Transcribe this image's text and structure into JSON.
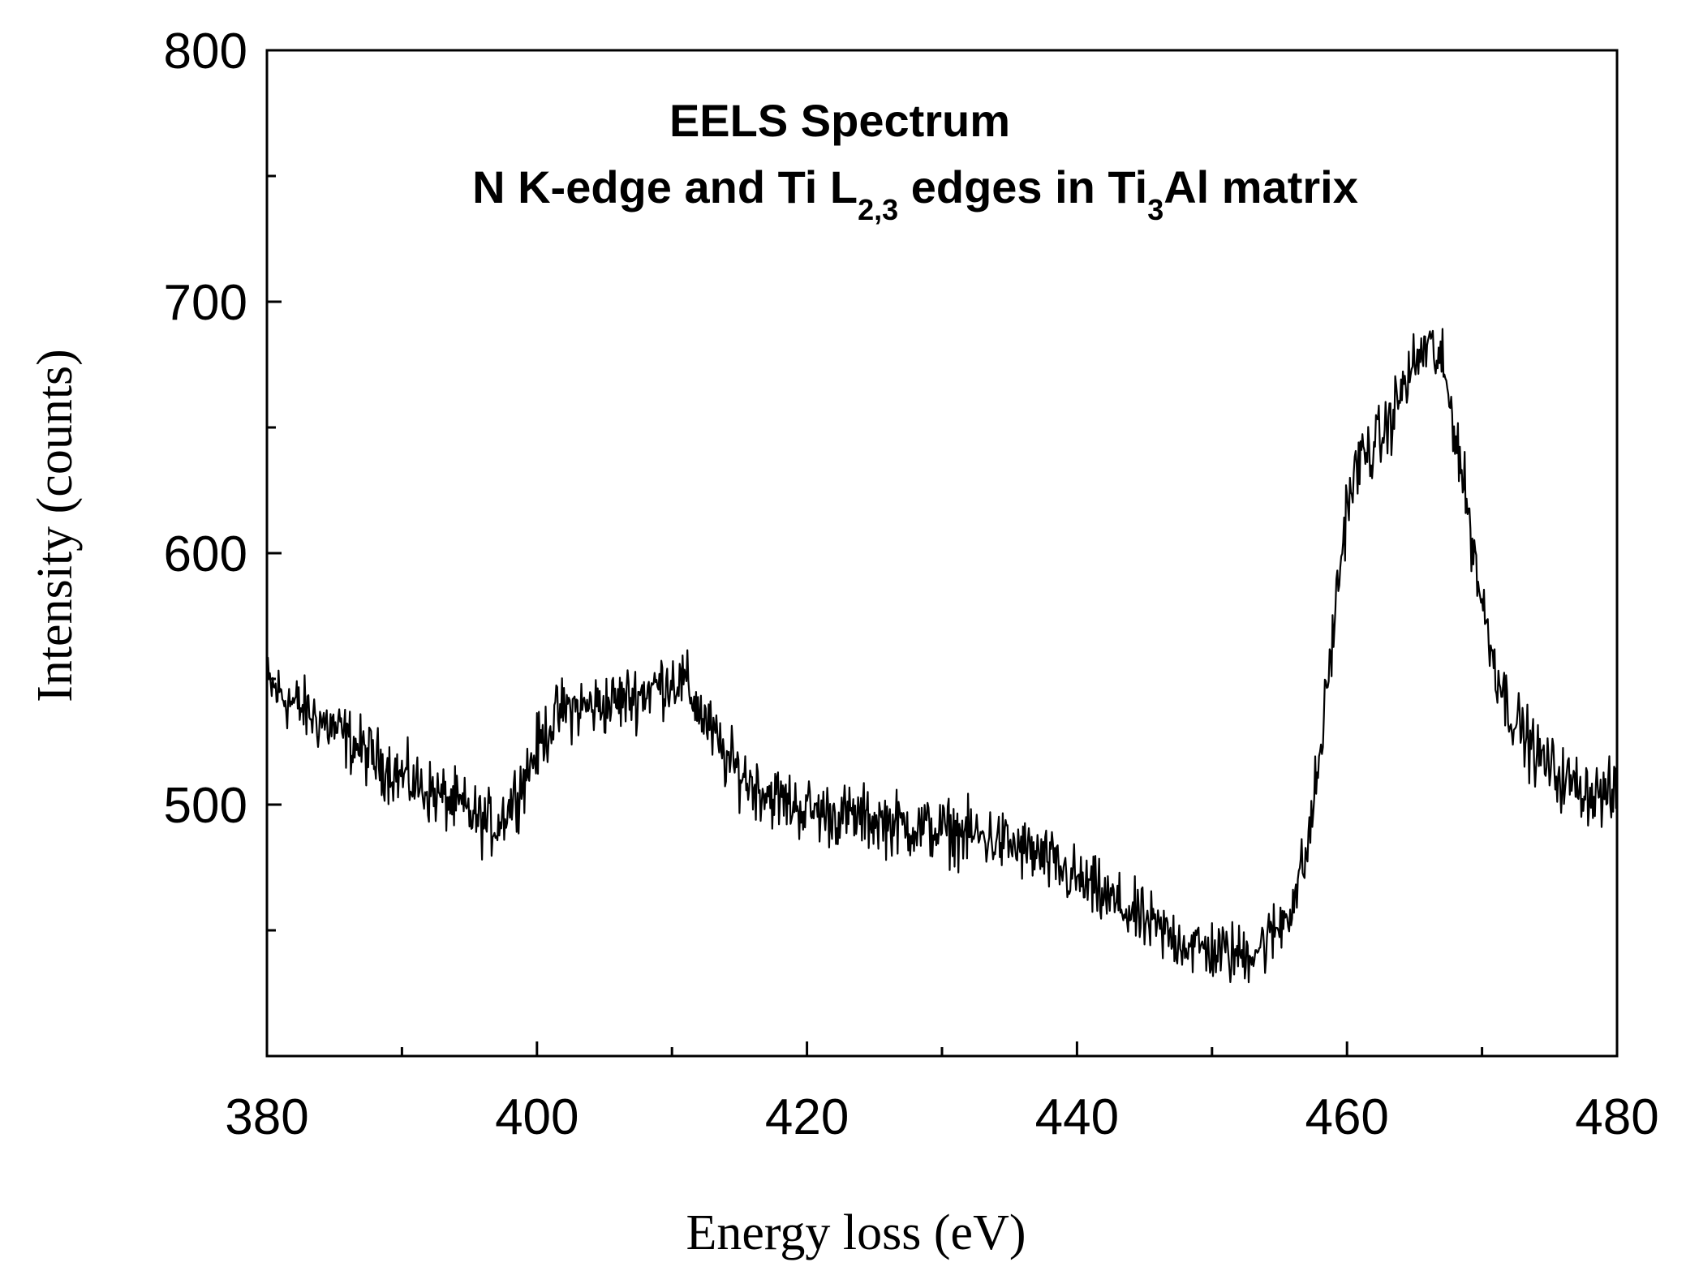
{
  "chart_data": {
    "type": "line",
    "title": "EELS Spectrum",
    "subtitle": {
      "parts": [
        {
          "text": "N K-edge and Ti L",
          "sub": false
        },
        {
          "text": "2,3",
          "sub": true
        },
        {
          "text": " edges in Ti",
          "sub": false
        },
        {
          "text": "3",
          "sub": true
        },
        {
          "text": "Al matrix",
          "sub": false
        }
      ]
    },
    "xlabel": "Energy loss (eV)",
    "ylabel": "Intensity (counts)",
    "xlim": [
      380,
      480
    ],
    "ylim": [
      400,
      800
    ],
    "x_ticks": [
      380,
      400,
      420,
      440,
      460,
      480
    ],
    "x_minor_ticks": [
      390,
      410,
      430,
      450,
      470
    ],
    "y_ticks": [
      500,
      600,
      700,
      800
    ],
    "y_minor_ticks": [
      450,
      550,
      650,
      750
    ],
    "grid": false,
    "legend": "none",
    "noise_amplitude": 9,
    "series": [
      {
        "name": "EELS spectrum",
        "x": [
          380,
          382,
          385,
          388,
          391,
          394,
          396,
          397,
          398,
          399,
          400,
          401,
          402,
          404,
          406,
          408,
          410,
          411,
          412,
          413,
          414,
          416,
          418,
          420,
          422,
          425,
          428,
          431,
          434,
          437,
          440,
          443,
          446,
          449,
          452,
          454,
          455,
          456,
          457,
          458,
          459,
          460,
          461,
          462,
          463,
          464,
          465,
          466,
          467,
          468,
          469,
          470,
          471,
          472,
          474,
          476,
          478,
          480
        ],
        "y": [
          548,
          540,
          530,
          518,
          508,
          500,
          493,
          492,
          500,
          510,
          522,
          532,
          538,
          539,
          541,
          545,
          550,
          548,
          538,
          528,
          518,
          508,
          502,
          498,
          496,
          494,
          491,
          489,
          486,
          480,
          470,
          460,
          450,
          443,
          440,
          445,
          452,
          462,
          480,
          520,
          570,
          620,
          638,
          642,
          650,
          664,
          675,
          683,
          675,
          650,
          615,
          580,
          555,
          538,
          520,
          510,
          505,
          503
        ]
      }
    ]
  }
}
